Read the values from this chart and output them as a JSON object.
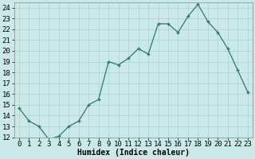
{
  "x": [
    0,
    1,
    2,
    3,
    4,
    5,
    6,
    7,
    8,
    9,
    10,
    11,
    12,
    13,
    14,
    15,
    16,
    17,
    18,
    19,
    20,
    21,
    22,
    23
  ],
  "y": [
    14.7,
    13.5,
    13.0,
    11.8,
    12.1,
    13.0,
    13.5,
    15.0,
    15.5,
    19.0,
    18.7,
    19.3,
    20.2,
    19.7,
    22.5,
    22.5,
    21.7,
    23.2,
    24.3,
    22.7,
    21.7,
    20.2,
    18.2,
    16.2
  ],
  "xlabel": "Humidex (Indice chaleur)",
  "ylim": [
    12,
    24.5
  ],
  "xlim": [
    -0.5,
    23.5
  ],
  "yticks": [
    12,
    13,
    14,
    15,
    16,
    17,
    18,
    19,
    20,
    21,
    22,
    23,
    24
  ],
  "xticks": [
    0,
    1,
    2,
    3,
    4,
    5,
    6,
    7,
    8,
    9,
    10,
    11,
    12,
    13,
    14,
    15,
    16,
    17,
    18,
    19,
    20,
    21,
    22,
    23
  ],
  "line_color": "#2d7a6a",
  "marker_color": "#2d7a6a",
  "bg_color": "#cce9e9",
  "grid_color": "#b0d4d4",
  "axis_label_fontsize": 7,
  "tick_fontsize": 6.5
}
